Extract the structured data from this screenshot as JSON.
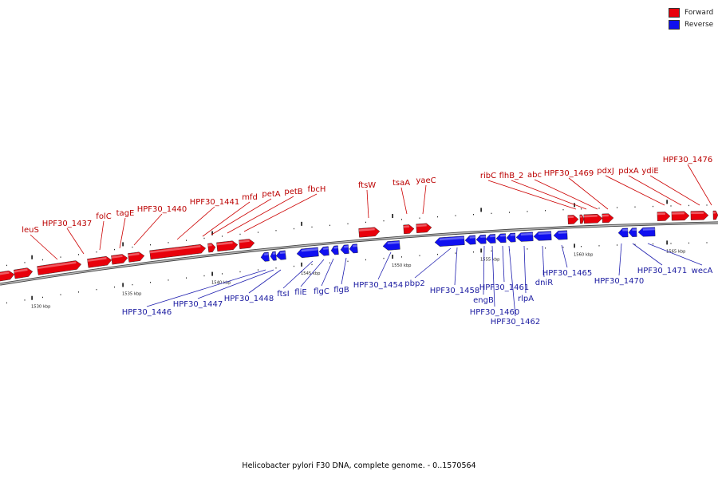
{
  "legend": {
    "forward_label": "Forward",
    "reverse_label": "Reverse",
    "forward_color": "#e8000b",
    "reverse_color": "#1010f0"
  },
  "caption": "Helicobacter pylori F30 DNA, complete genome. - 0..1570564",
  "colors": {
    "forward_label": "#bb0000",
    "reverse_label": "#1a1aa0",
    "backbone": "#777777"
  },
  "scale_labels": [
    "1530 kbp",
    "1535 kbp",
    "1540 kbp",
    "1545 kbp",
    "1550 kbp",
    "1555 kbp",
    "1560 kbp",
    "1565 kbp"
  ],
  "forward_genes": [
    "leuS",
    "HPF30_1437",
    "folC",
    "tagE",
    "HPF30_1440",
    "HPF30_1441",
    "mfd",
    "petA",
    "petB",
    "fbcH",
    "ftsW",
    "tsaA",
    "yaeC",
    "ribC",
    "flhB_2",
    "abc",
    "HPF30_1469",
    "pdxJ",
    "pdxA",
    "ydiE",
    "HPF30_1476"
  ],
  "reverse_genes": [
    "HPF30_1446",
    "HPF30_1447",
    "HPF30_1448",
    "ftsI",
    "fliE",
    "flgC",
    "flgB",
    "HPF30_1454",
    "pbp2",
    "HPF30_1458",
    "engB",
    "HPF30_1461",
    "HPF30_1460",
    "HPF30_1462",
    "rlpA",
    "dniR",
    "HPF30_1465",
    "HPF30_1470",
    "HPF30_1471",
    "wecA"
  ]
}
